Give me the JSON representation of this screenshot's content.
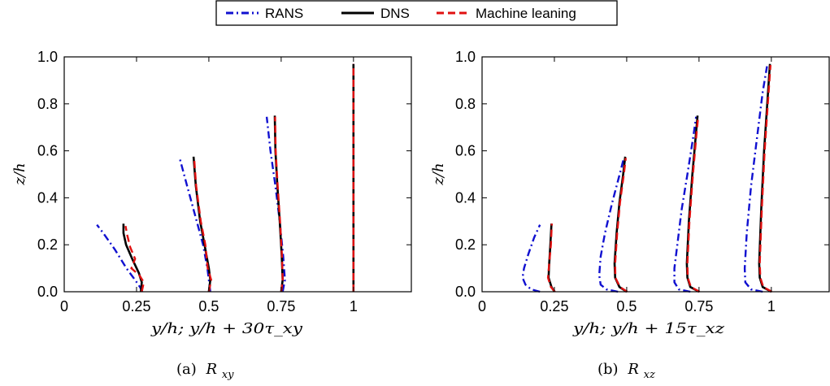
{
  "legend": {
    "position": "top-center",
    "entries": [
      {
        "label": "RANS",
        "color": "#1010d0",
        "dash": "dash-dot"
      },
      {
        "label": "DNS",
        "color": "#000000",
        "dash": "solid"
      },
      {
        "label": "Machine leaning",
        "color": "#e01010",
        "dash": "dashed"
      }
    ]
  },
  "chart_data": [
    {
      "type": "line",
      "panel": "a",
      "caption_prefix": "(a)",
      "caption_symbol": "R",
      "caption_sub": "xy",
      "xlabel": "y/h;   y/h + 30τ_xy",
      "ylabel": "z/h",
      "xlim": [
        0,
        1.2
      ],
      "ylim": [
        0,
        1.0
      ],
      "xticks": [
        0,
        0.25,
        0.5,
        0.75,
        1
      ],
      "xtick_labels": [
        "0",
        "0.25",
        "0.5",
        "0.75",
        "1"
      ],
      "yticks": [
        0,
        0.2,
        0.4,
        0.6,
        0.8,
        1.0
      ],
      "ytick_labels": [
        "0.0",
        "0.2",
        "0.4",
        "0.6",
        "0.8",
        "1.0"
      ],
      "grid": false,
      "series": [
        {
          "legend_ref": "RANS",
          "station": 0.25,
          "x": [
            0.27,
            0.262,
            0.245,
            0.215,
            0.175,
            0.135,
            0.113
          ],
          "y": [
            0.0,
            0.02,
            0.05,
            0.1,
            0.18,
            0.25,
            0.285
          ]
        },
        {
          "legend_ref": "DNS",
          "station": 0.25,
          "x": [
            0.265,
            0.268,
            0.258,
            0.235,
            0.214,
            0.205,
            0.205
          ],
          "y": [
            0.0,
            0.04,
            0.08,
            0.14,
            0.2,
            0.25,
            0.29
          ]
        },
        {
          "legend_ref": "Machine leaning",
          "station": 0.25,
          "x": [
            0.268,
            0.275,
            0.26,
            0.232,
            0.245,
            0.228,
            0.218,
            0.212
          ],
          "y": [
            0.0,
            0.04,
            0.07,
            0.1,
            0.14,
            0.19,
            0.24,
            0.28
          ]
        },
        {
          "legend_ref": "RANS",
          "station": 0.5,
          "x": [
            0.505,
            0.5,
            0.495,
            0.48,
            0.458,
            0.425,
            0.4
          ],
          "y": [
            0.0,
            0.05,
            0.1,
            0.2,
            0.3,
            0.45,
            0.565
          ]
        },
        {
          "legend_ref": "DNS",
          "station": 0.5,
          "x": [
            0.5,
            0.505,
            0.5,
            0.485,
            0.47,
            0.455,
            0.447
          ],
          "y": [
            0.0,
            0.05,
            0.1,
            0.2,
            0.3,
            0.45,
            0.575
          ]
        },
        {
          "legend_ref": "Machine leaning",
          "station": 0.5,
          "x": [
            0.5,
            0.508,
            0.496,
            0.488,
            0.472,
            0.456,
            0.449
          ],
          "y": [
            0.0,
            0.05,
            0.1,
            0.2,
            0.3,
            0.45,
            0.57
          ]
        },
        {
          "legend_ref": "RANS",
          "station": 0.75,
          "x": [
            0.755,
            0.763,
            0.757,
            0.745,
            0.73,
            0.713,
            0.7
          ],
          "y": [
            0.0,
            0.05,
            0.15,
            0.3,
            0.45,
            0.6,
            0.745
          ]
        },
        {
          "legend_ref": "DNS",
          "station": 0.75,
          "x": [
            0.75,
            0.755,
            0.752,
            0.745,
            0.737,
            0.73,
            0.728
          ],
          "y": [
            0.0,
            0.05,
            0.15,
            0.3,
            0.45,
            0.6,
            0.75
          ]
        },
        {
          "legend_ref": "Machine leaning",
          "station": 0.75,
          "x": [
            0.75,
            0.755,
            0.753,
            0.746,
            0.738,
            0.731,
            0.729
          ],
          "y": [
            0.0,
            0.05,
            0.15,
            0.3,
            0.45,
            0.6,
            0.745
          ]
        },
        {
          "legend_ref": "DNS",
          "station": 1.0,
          "x": [
            1.0,
            1.0
          ],
          "y": [
            0.0,
            0.97
          ]
        },
        {
          "legend_ref": "RANS",
          "station": 1.0,
          "x": [
            1.0,
            1.0
          ],
          "y": [
            0.0,
            0.97
          ]
        },
        {
          "legend_ref": "Machine leaning",
          "station": 1.0,
          "x": [
            1.0,
            1.0
          ],
          "y": [
            0.0,
            0.97
          ]
        }
      ]
    },
    {
      "type": "line",
      "panel": "b",
      "caption_prefix": "(b)",
      "caption_symbol": "R",
      "caption_sub": "xz",
      "xlabel": "y/h;   y/h + 15τ_xz",
      "ylabel": "z/h",
      "xlim": [
        0,
        1.2
      ],
      "ylim": [
        0,
        1.0
      ],
      "xticks": [
        0,
        0.25,
        0.5,
        0.75,
        1
      ],
      "xtick_labels": [
        "0",
        "0.25",
        "0.5",
        "0.75",
        "1"
      ],
      "yticks": [
        0,
        0.2,
        0.4,
        0.6,
        0.8,
        1.0
      ],
      "ytick_labels": [
        "0.0",
        "0.2",
        "0.4",
        "0.6",
        "0.8",
        "1.0"
      ],
      "grid": false,
      "series": [
        {
          "legend_ref": "RANS",
          "station": 0.25,
          "x": [
            0.2,
            0.17,
            0.15,
            0.14,
            0.145,
            0.16,
            0.18,
            0.2
          ],
          "y": [
            0.0,
            0.01,
            0.03,
            0.06,
            0.1,
            0.16,
            0.23,
            0.285
          ]
        },
        {
          "legend_ref": "DNS",
          "station": 0.25,
          "x": [
            0.25,
            0.24,
            0.23,
            0.232,
            0.236,
            0.24
          ],
          "y": [
            0.0,
            0.02,
            0.06,
            0.12,
            0.2,
            0.29
          ]
        },
        {
          "legend_ref": "Machine leaning",
          "station": 0.25,
          "x": [
            0.252,
            0.238,
            0.228,
            0.232,
            0.238,
            0.241
          ],
          "y": [
            0.0,
            0.02,
            0.06,
            0.12,
            0.2,
            0.29
          ]
        },
        {
          "legend_ref": "RANS",
          "station": 0.5,
          "x": [
            0.47,
            0.43,
            0.41,
            0.405,
            0.41,
            0.425,
            0.45,
            0.48,
            0.49
          ],
          "y": [
            0.0,
            0.01,
            0.03,
            0.07,
            0.15,
            0.25,
            0.38,
            0.52,
            0.57
          ]
        },
        {
          "legend_ref": "DNS",
          "station": 0.5,
          "x": [
            0.5,
            0.475,
            0.46,
            0.458,
            0.465,
            0.475,
            0.488,
            0.495
          ],
          "y": [
            0.0,
            0.02,
            0.06,
            0.12,
            0.25,
            0.38,
            0.5,
            0.575
          ]
        },
        {
          "legend_ref": "Machine leaning",
          "station": 0.5,
          "x": [
            0.502,
            0.477,
            0.461,
            0.46,
            0.467,
            0.477,
            0.49,
            0.497
          ],
          "y": [
            0.0,
            0.02,
            0.06,
            0.12,
            0.25,
            0.38,
            0.5,
            0.57
          ]
        },
        {
          "legend_ref": "RANS",
          "station": 0.75,
          "x": [
            0.72,
            0.68,
            0.665,
            0.665,
            0.675,
            0.69,
            0.71,
            0.73,
            0.74
          ],
          "y": [
            0.0,
            0.01,
            0.04,
            0.1,
            0.2,
            0.35,
            0.5,
            0.66,
            0.745
          ]
        },
        {
          "legend_ref": "DNS",
          "station": 0.75,
          "x": [
            0.75,
            0.72,
            0.71,
            0.708,
            0.715,
            0.727,
            0.74,
            0.745
          ],
          "y": [
            0.0,
            0.02,
            0.06,
            0.12,
            0.3,
            0.5,
            0.68,
            0.75
          ]
        },
        {
          "legend_ref": "Machine leaning",
          "station": 0.75,
          "x": [
            0.752,
            0.722,
            0.711,
            0.71,
            0.717,
            0.729,
            0.742,
            0.747
          ],
          "y": [
            0.0,
            0.02,
            0.06,
            0.12,
            0.3,
            0.5,
            0.68,
            0.745
          ]
        },
        {
          "legend_ref": "RANS",
          "station": 1.0,
          "x": [
            0.97,
            0.93,
            0.91,
            0.908,
            0.915,
            0.93,
            0.95,
            0.97,
            0.985
          ],
          "y": [
            0.0,
            0.01,
            0.04,
            0.1,
            0.25,
            0.45,
            0.65,
            0.85,
            0.96
          ]
        },
        {
          "legend_ref": "DNS",
          "station": 1.0,
          "x": [
            1.0,
            0.97,
            0.96,
            0.958,
            0.965,
            0.975,
            0.987,
            0.995
          ],
          "y": [
            0.0,
            0.02,
            0.06,
            0.12,
            0.35,
            0.6,
            0.82,
            0.97
          ]
        },
        {
          "legend_ref": "Machine leaning",
          "station": 1.0,
          "x": [
            1.002,
            0.972,
            0.962,
            0.96,
            0.967,
            0.977,
            0.989,
            0.997
          ],
          "y": [
            0.0,
            0.02,
            0.06,
            0.12,
            0.35,
            0.6,
            0.82,
            0.965
          ]
        }
      ]
    }
  ]
}
